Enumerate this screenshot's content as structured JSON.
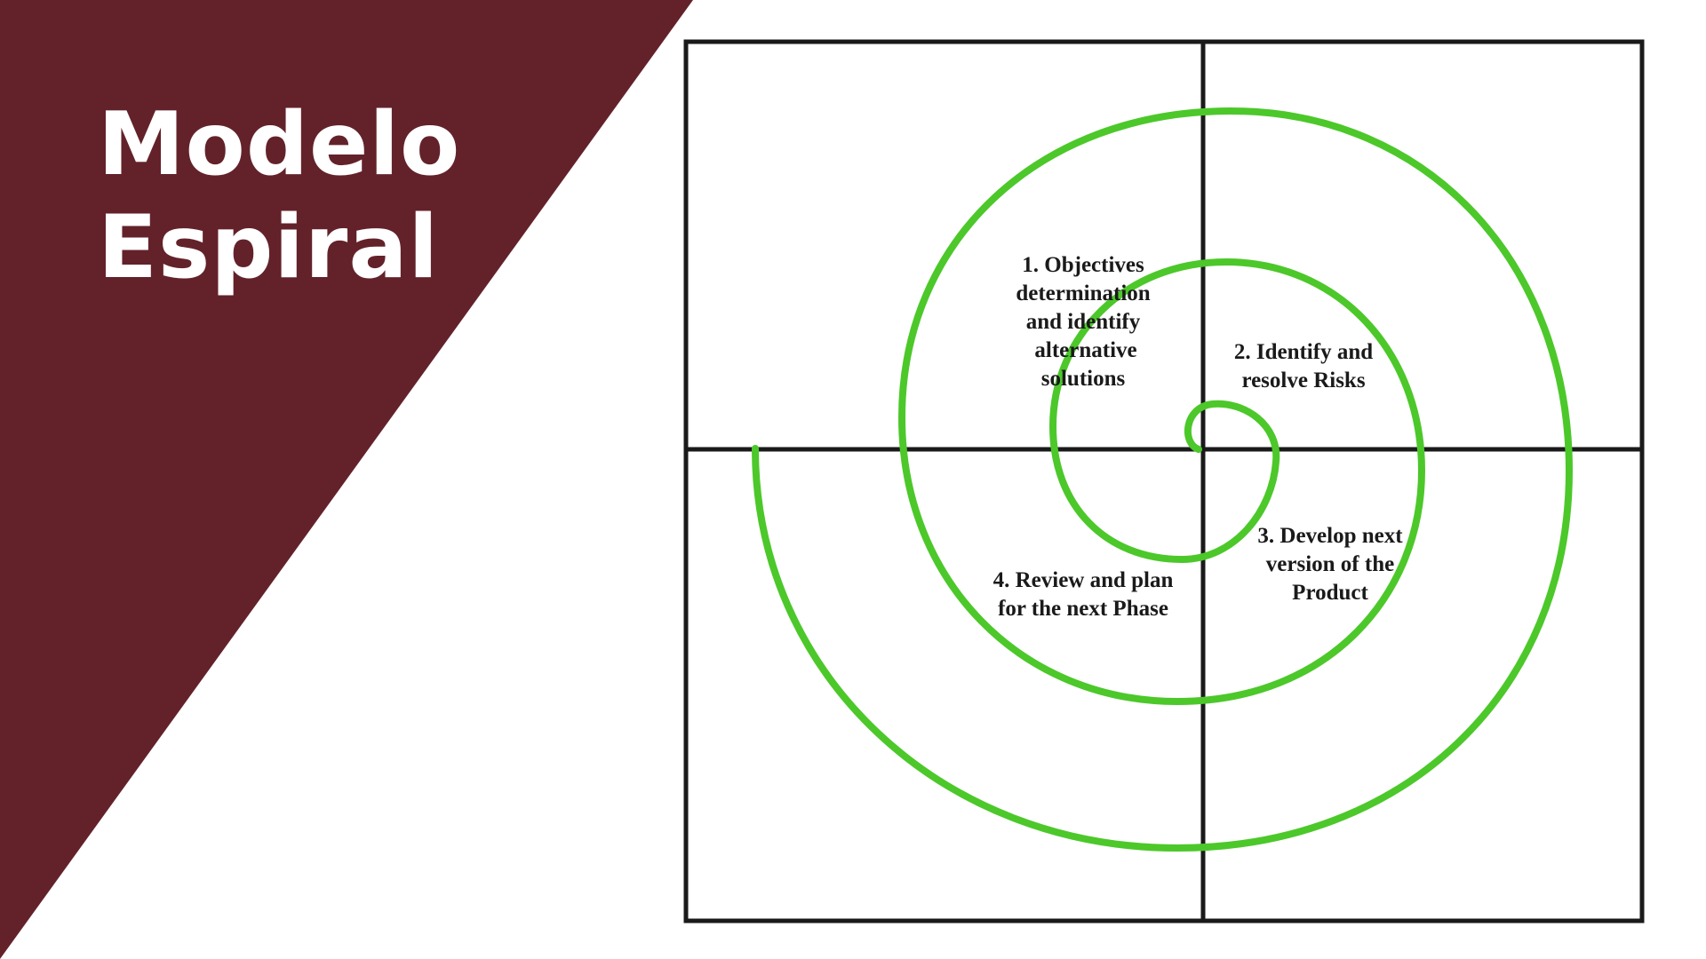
{
  "slide": {
    "title_line1": "Modelo",
    "title_line2": "Espiral",
    "banner_color": "#63222a",
    "title_color": "#ffffff"
  },
  "diagram": {
    "spiral_color": "#4cc82a",
    "frame_color": "#1a1a1a",
    "quadrants": [
      {
        "lines": [
          "1. Objectives",
          "determination",
          "and identify",
          "alternative",
          "solutions"
        ]
      },
      {
        "lines": [
          "2. Identify and",
          "resolve Risks"
        ]
      },
      {
        "lines": [
          "3. Develop next",
          "version of the",
          "Product"
        ]
      },
      {
        "lines": [
          "4. Review and plan",
          "for the next Phase"
        ]
      }
    ]
  }
}
